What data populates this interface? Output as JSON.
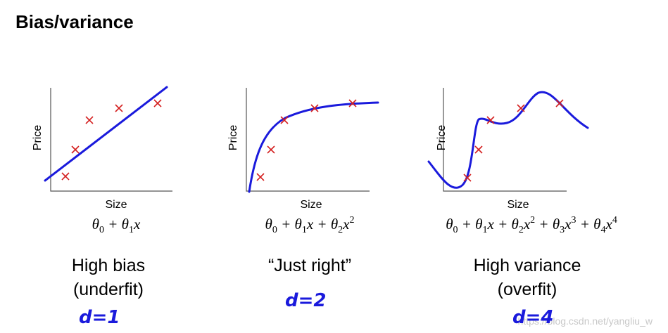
{
  "title": "Bias/variance",
  "panels": [
    {
      "y_label": "Price",
      "x_label": "Size",
      "formula": [
        {
          "text": "θ",
          "sub": "0"
        },
        {
          "text": " + θ",
          "sub": "1"
        },
        {
          "text": "x"
        }
      ],
      "caption": [
        "High bias",
        "(underfit)"
      ],
      "note": "d=1"
    },
    {
      "y_label": "Price",
      "x_label": "Size",
      "formula": [
        {
          "text": "θ",
          "sub": "0"
        },
        {
          "text": " + θ",
          "sub": "1"
        },
        {
          "text": "x + θ",
          "sub": "2"
        },
        {
          "text": "x",
          "sup": "2"
        }
      ],
      "caption": [
        "“Just right”"
      ],
      "note": "d=2"
    },
    {
      "y_label": "Price",
      "x_label": "Size",
      "formula": [
        {
          "text": "θ",
          "sub": "0"
        },
        {
          "text": " + θ",
          "sub": "1"
        },
        {
          "text": "x + θ",
          "sub": "2"
        },
        {
          "text": "x",
          "sup": "2"
        },
        {
          "text": " + θ",
          "sub": "3"
        },
        {
          "text": "x",
          "sup": "3"
        },
        {
          "text": " + θ",
          "sub": "4"
        },
        {
          "text": "x",
          "sup": "4"
        }
      ],
      "caption": [
        "High variance",
        "(overfit)"
      ],
      "note": "d=4"
    }
  ],
  "watermark": "https://blog.csdn.net/yangliu_w"
}
